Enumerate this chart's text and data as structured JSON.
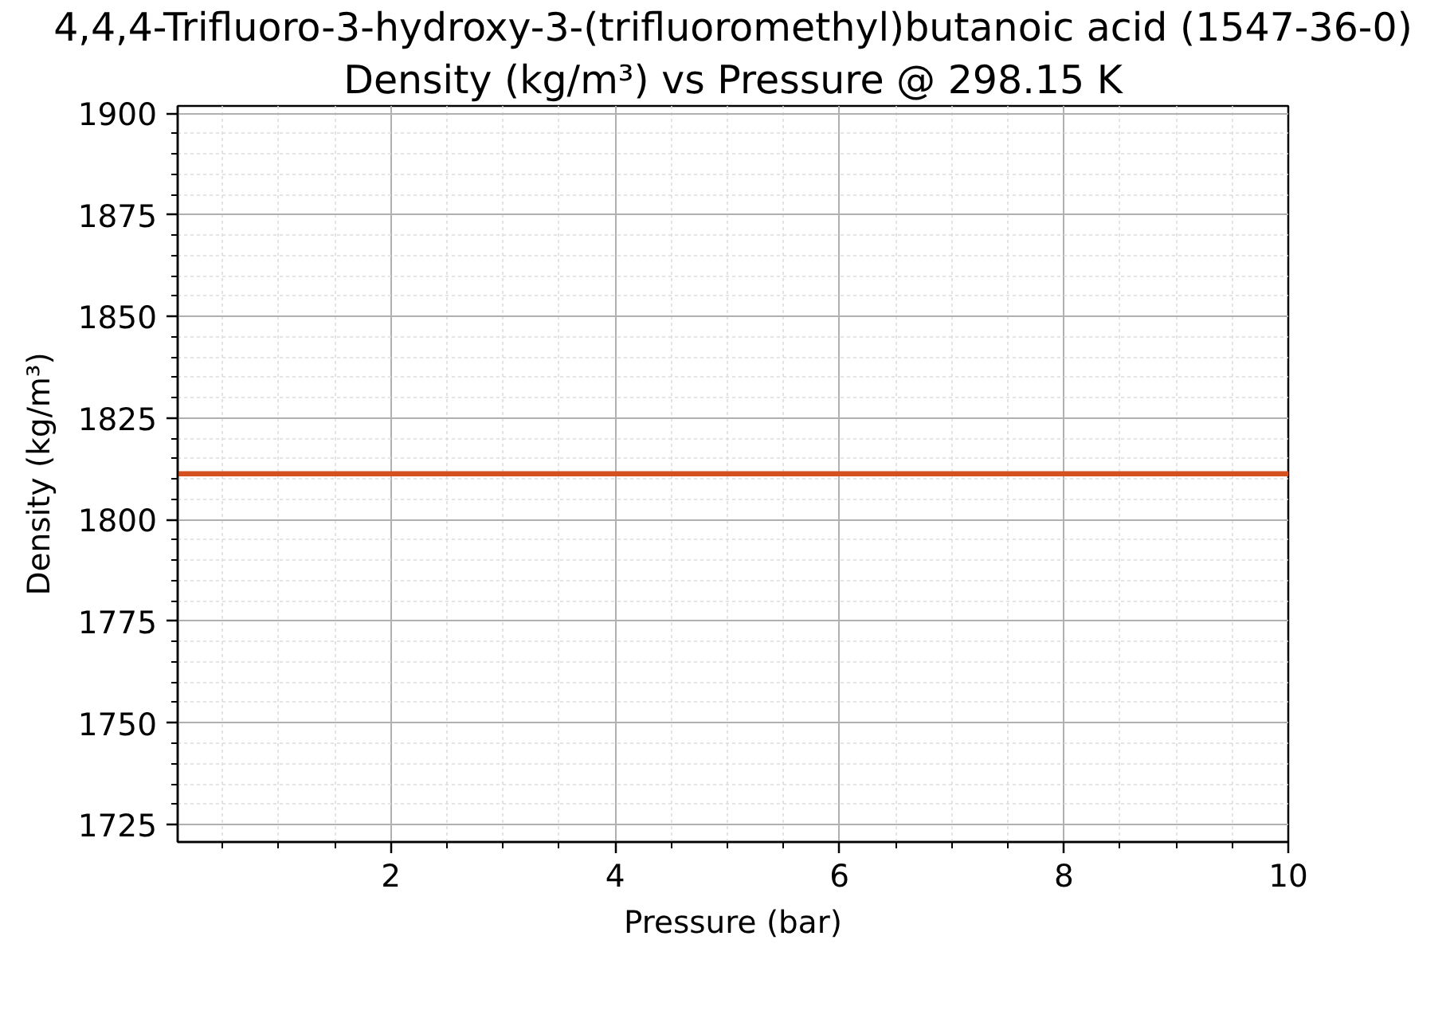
{
  "chart_data": {
    "type": "line",
    "title": "4,4,4-Trifluoro-3-hydroxy-3-(trifluoromethyl)butanoic acid (1547-36-0)",
    "subtitle": "Density (kg/m³) vs Pressure @ 298.15 K",
    "xlabel": "Pressure (bar)",
    "ylabel": "Density (kg/m³)",
    "x": [
      0.1,
      10
    ],
    "series": [
      {
        "color": "#d4501e",
        "values": [
          1811.3,
          1811.3
        ]
      }
    ],
    "xlim": [
      0.1,
      10
    ],
    "ylim": [
      1720.7,
      1901.8
    ],
    "xticks": [
      2,
      4,
      6,
      8,
      10
    ],
    "yticks": [
      1725,
      1750,
      1775,
      1800,
      1825,
      1850,
      1875,
      1900
    ],
    "grid": true,
    "line_style": "solid"
  }
}
